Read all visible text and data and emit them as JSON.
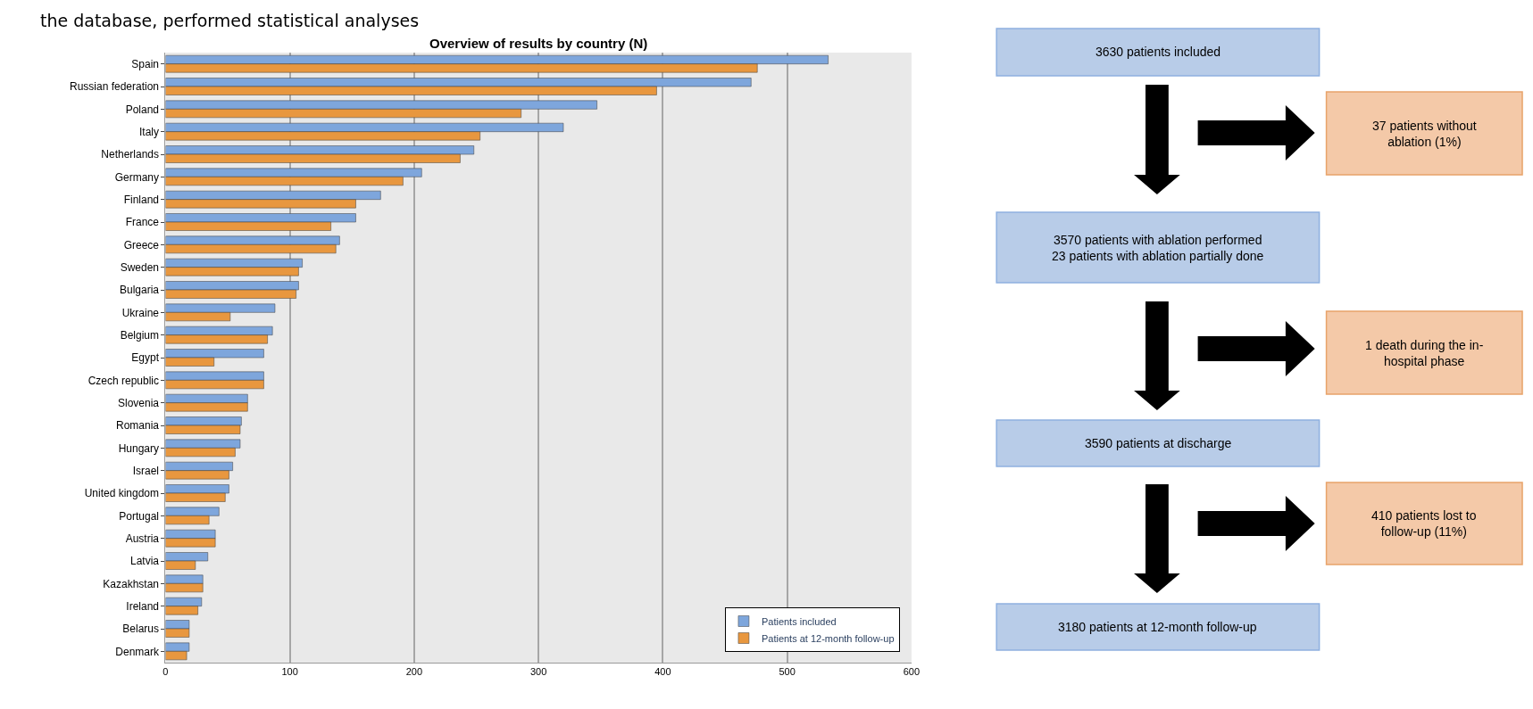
{
  "chart_data": [
    {
      "type": "bar",
      "orientation": "horizontal",
      "title": "Overview of results by country (N)",
      "annotations": [
        "the database, performed statistical analyses"
      ],
      "categories": [
        "Spain",
        "Russian federation",
        "Poland",
        "Italy",
        "Netherlands",
        "Germany",
        "Finland",
        "France",
        "Greece",
        "Sweden",
        "Bulgaria",
        "Ukraine",
        "Belgium",
        "Egypt",
        "Czech republic",
        "Slovenia",
        "Romania",
        "Hungary",
        "Israel",
        "United kingdom",
        "Portugal",
        "Austria",
        "Latvia",
        "Kazakhstan",
        "Ireland",
        "Belarus",
        "Denmark"
      ],
      "series": [
        {
          "name": "Patients included",
          "color": "#7ea6dc",
          "values": [
            533,
            471,
            347,
            320,
            248,
            206,
            173,
            153,
            140,
            110,
            107,
            88,
            86,
            79,
            79,
            66,
            61,
            60,
            54,
            51,
            43,
            40,
            34,
            30,
            29,
            19,
            19
          ]
        },
        {
          "name": "Patients at 12-month follow-up",
          "color": "#e8973f",
          "values": [
            476,
            395,
            286,
            253,
            237,
            191,
            153,
            133,
            137,
            107,
            105,
            52,
            82,
            39,
            79,
            66,
            60,
            56,
            51,
            48,
            35,
            40,
            24,
            30,
            26,
            19,
            17
          ]
        }
      ],
      "xlim": [
        0,
        600
      ],
      "xticks": [
        0,
        100,
        200,
        300,
        400,
        500,
        600
      ],
      "grid": "x",
      "legend": "bottom right"
    },
    {
      "type": "other",
      "annotations": [
        "3630 patients included",
        "37 patients without\nablation (1%)",
        "3570 patients with ablation performed\n23 patients with ablation partially done",
        "1 death during the in-\nhospital phase",
        "3590 patients at discharge",
        "410 patients lost to\nfollow-up (11%)",
        "3180 patients at 12-month follow-up"
      ]
    }
  ]
}
